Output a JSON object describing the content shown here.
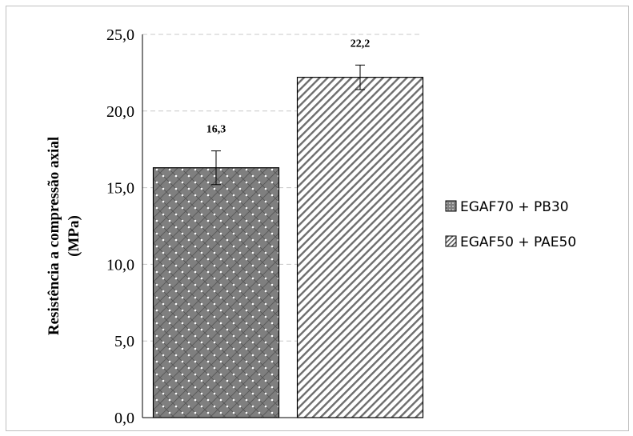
{
  "chart_data": {
    "type": "bar",
    "title": "",
    "xlabel": "",
    "ylabel_line1": "Resistência a compressão axial",
    "ylabel_line2": "(MPa)",
    "ylim": [
      0,
      25
    ],
    "yticks": [
      "0,0",
      "5,0",
      "10,0",
      "15,0",
      "20,0",
      "25,0"
    ],
    "grid": "horizontal dashed",
    "legend_position": "right",
    "series": [
      {
        "name": "EGAF70 + PB30",
        "value": 16.3,
        "label": "16,3",
        "error": 1.1,
        "pattern": "dotted-crosshatch"
      },
      {
        "name": "EGAF50 + PAE50",
        "value": 22.2,
        "label": "22,2",
        "error": 0.8,
        "pattern": "diagonal-stripes"
      }
    ]
  }
}
